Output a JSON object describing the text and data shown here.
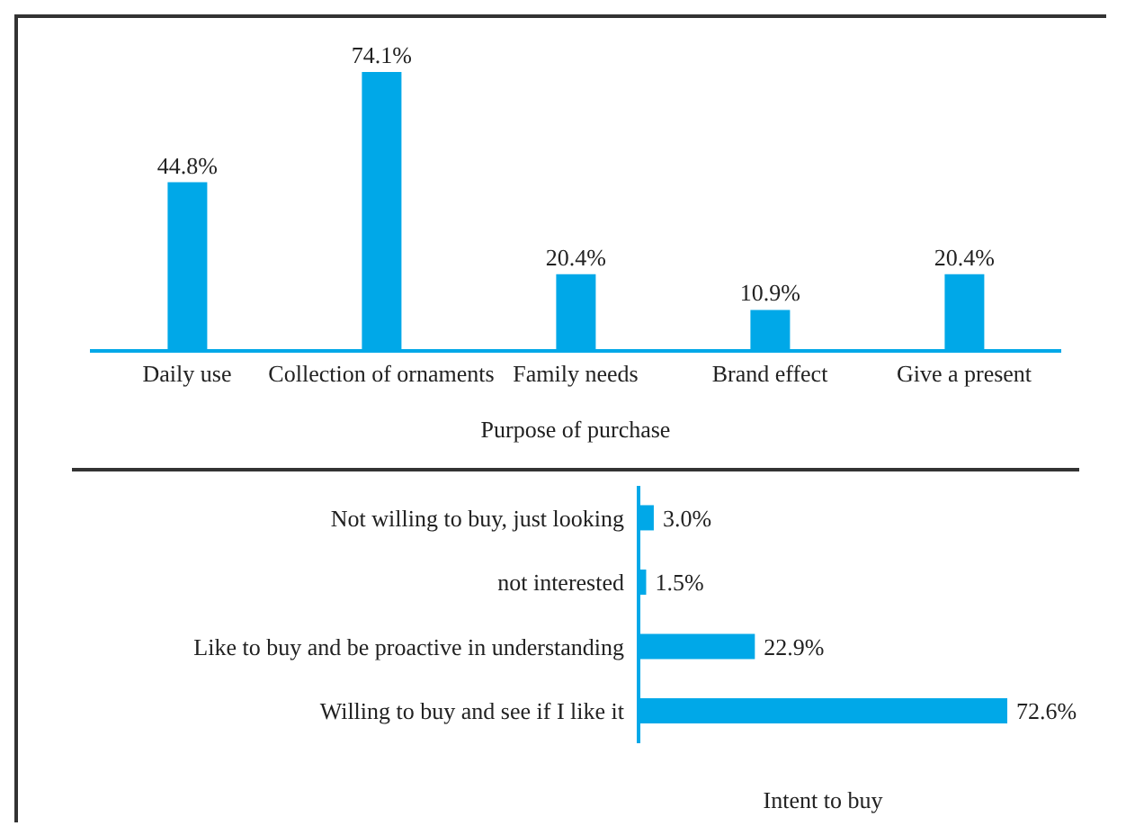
{
  "chart_data": [
    {
      "type": "bar",
      "xlabel": "Purpose of purchase",
      "categories": [
        "Daily use",
        "Collection of ornaments",
        "Family needs",
        "Brand effect",
        "Give a present"
      ],
      "values": [
        44.8,
        74.1,
        20.4,
        10.9,
        20.4
      ],
      "value_labels": [
        "44.8%",
        "74.1%",
        "20.4%",
        "10.9%",
        "20.4%"
      ],
      "color": "#00a8e8"
    },
    {
      "type": "bar",
      "orientation": "horizontal",
      "xlabel": "Intent to buy",
      "categories": [
        "Not willing to buy, just looking",
        "not interested",
        "Like to buy and be proactive in understanding",
        "Willing to buy and see if I like it"
      ],
      "values": [
        3.0,
        1.5,
        22.9,
        72.6
      ],
      "value_labels": [
        "3.0%",
        "1.5%",
        "22.9%",
        "72.6%"
      ],
      "color": "#00a8e8"
    }
  ]
}
